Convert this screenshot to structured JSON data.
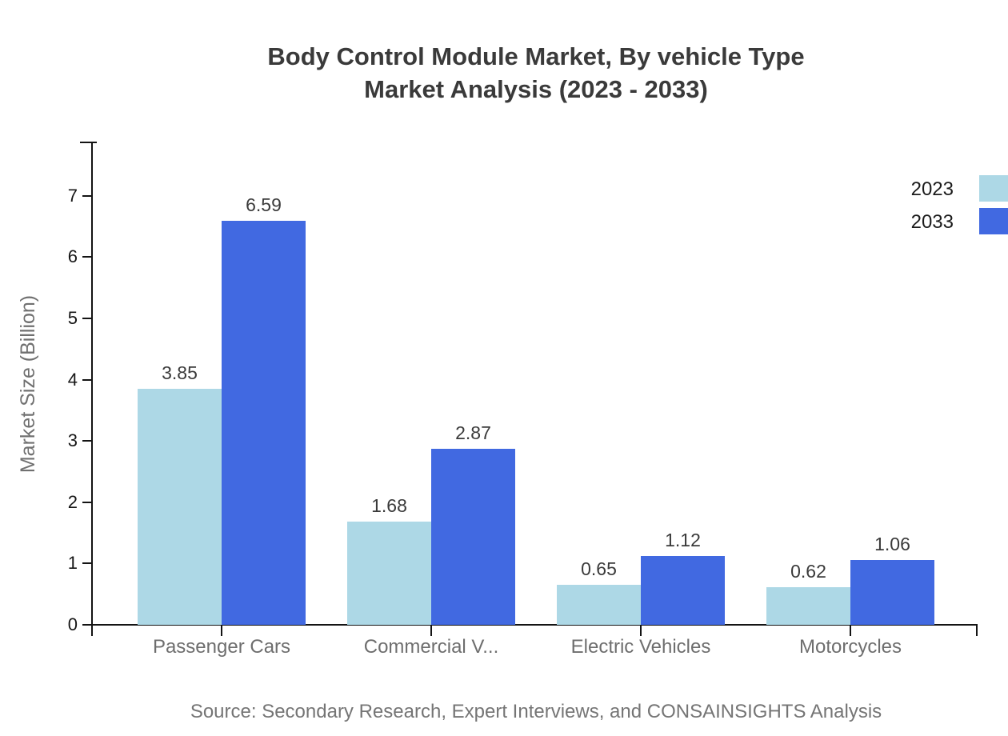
{
  "title": {
    "line1": "Body Control Module Market, By vehicle Type",
    "line2": "Market Analysis (2023 - 2033)"
  },
  "source": "Source: Secondary Research, Expert Interviews, and CONSAINSIGHTS Analysis",
  "colors": {
    "series_2023": "#ADD8E6",
    "series_2033": "#4169E1",
    "axis": "#141414",
    "title_text": "#3a3a3a",
    "muted_text": "#707070"
  },
  "chart_data": {
    "type": "bar",
    "title": "Body Control Module Market, By vehicle Type Market Analysis (2023 - 2033)",
    "categories": [
      "Passenger Cars",
      "Commercial V...",
      "Electric Vehicles",
      "Motorcycles"
    ],
    "series": [
      {
        "name": "2023",
        "color": "#ADD8E6",
        "values": [
          3.85,
          1.68,
          0.65,
          0.62
        ]
      },
      {
        "name": "2033",
        "color": "#4169E1",
        "values": [
          6.59,
          2.87,
          1.12,
          1.06
        ]
      }
    ],
    "xlabel": "",
    "ylabel": "Market Size (Billion)",
    "ylim": [
      0,
      7.9
    ],
    "yticks": [
      0,
      1,
      2,
      3,
      4,
      5,
      6,
      7
    ],
    "grid": false,
    "legend_position": "top-right",
    "value_labels": true
  }
}
